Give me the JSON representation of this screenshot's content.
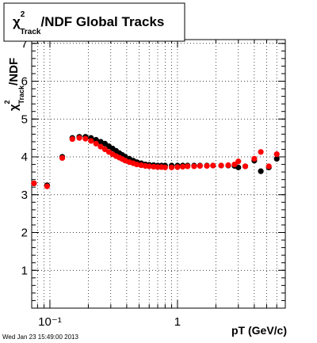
{
  "chart_data": {
    "type": "scatter",
    "title": {
      "symbol": "χ",
      "sup": "2",
      "sub": "Track",
      "text": "/NDF  Global Tracks"
    },
    "ylabel": {
      "symbol": "χ",
      "sup": "2",
      "sub": "Track",
      "text": "/NDF"
    },
    "xlabel": "pT (GeV/c)",
    "date": "Wed Jan 23 15:49:00 2013",
    "xscale": "log",
    "xlim": [
      0.072,
      7
    ],
    "ylim": [
      0,
      7.1
    ],
    "xticks": [
      {
        "value": 0.1,
        "label": "10⁻¹"
      },
      1
    ],
    "xminorticks": [
      0.08,
      0.09,
      0.2,
      0.3,
      0.4,
      0.5,
      0.6,
      0.7,
      0.8,
      0.9,
      2,
      3,
      4,
      5,
      6,
      7
    ],
    "yticks": [
      1,
      2,
      3,
      4,
      5,
      6,
      7
    ],
    "grid": true,
    "series": [
      {
        "name": "black",
        "color": "#000000",
        "x": [
          0.075,
          0.095,
          0.125,
          0.15,
          0.17,
          0.19,
          0.21,
          0.23,
          0.25,
          0.27,
          0.29,
          0.31,
          0.33,
          0.35,
          0.37,
          0.39,
          0.42,
          0.45,
          0.48,
          0.52,
          0.56,
          0.6,
          0.65,
          0.7,
          0.75,
          0.8,
          0.9,
          1.0,
          1.1,
          1.2,
          1.35,
          1.5,
          1.7,
          1.9,
          2.2,
          2.5,
          2.8,
          3.0,
          3.4,
          4.0,
          4.5,
          5.2,
          6.0
        ],
        "values": [
          3.3,
          3.25,
          4.0,
          4.5,
          4.53,
          4.53,
          4.5,
          4.45,
          4.4,
          4.35,
          4.28,
          4.22,
          4.16,
          4.1,
          4.05,
          4.0,
          3.95,
          3.9,
          3.86,
          3.83,
          3.8,
          3.79,
          3.78,
          3.77,
          3.77,
          3.77,
          3.77,
          3.77,
          3.77,
          3.77,
          3.77,
          3.77,
          3.77,
          3.77,
          3.77,
          3.77,
          3.76,
          3.72,
          3.75,
          3.9,
          3.62,
          3.72,
          3.95
        ]
      },
      {
        "name": "red",
        "color": "#ff0000",
        "x": [
          0.075,
          0.095,
          0.125,
          0.15,
          0.17,
          0.19,
          0.21,
          0.23,
          0.25,
          0.27,
          0.29,
          0.31,
          0.33,
          0.35,
          0.37,
          0.39,
          0.42,
          0.45,
          0.48,
          0.52,
          0.56,
          0.6,
          0.65,
          0.7,
          0.75,
          0.8,
          0.9,
          1.0,
          1.1,
          1.2,
          1.35,
          1.5,
          1.7,
          1.9,
          2.2,
          2.5,
          2.8,
          3.0,
          3.4,
          4.0,
          4.5,
          5.2,
          6.0
        ],
        "values": [
          3.3,
          3.22,
          3.97,
          4.47,
          4.5,
          4.48,
          4.42,
          4.35,
          4.27,
          4.2,
          4.13,
          4.07,
          4.02,
          3.98,
          3.94,
          3.9,
          3.86,
          3.83,
          3.8,
          3.78,
          3.76,
          3.75,
          3.74,
          3.73,
          3.73,
          3.72,
          3.72,
          3.73,
          3.74,
          3.75,
          3.75,
          3.76,
          3.76,
          3.77,
          3.77,
          3.78,
          3.8,
          3.88,
          3.75,
          3.95,
          4.13,
          3.75,
          4.07
        ]
      }
    ]
  }
}
